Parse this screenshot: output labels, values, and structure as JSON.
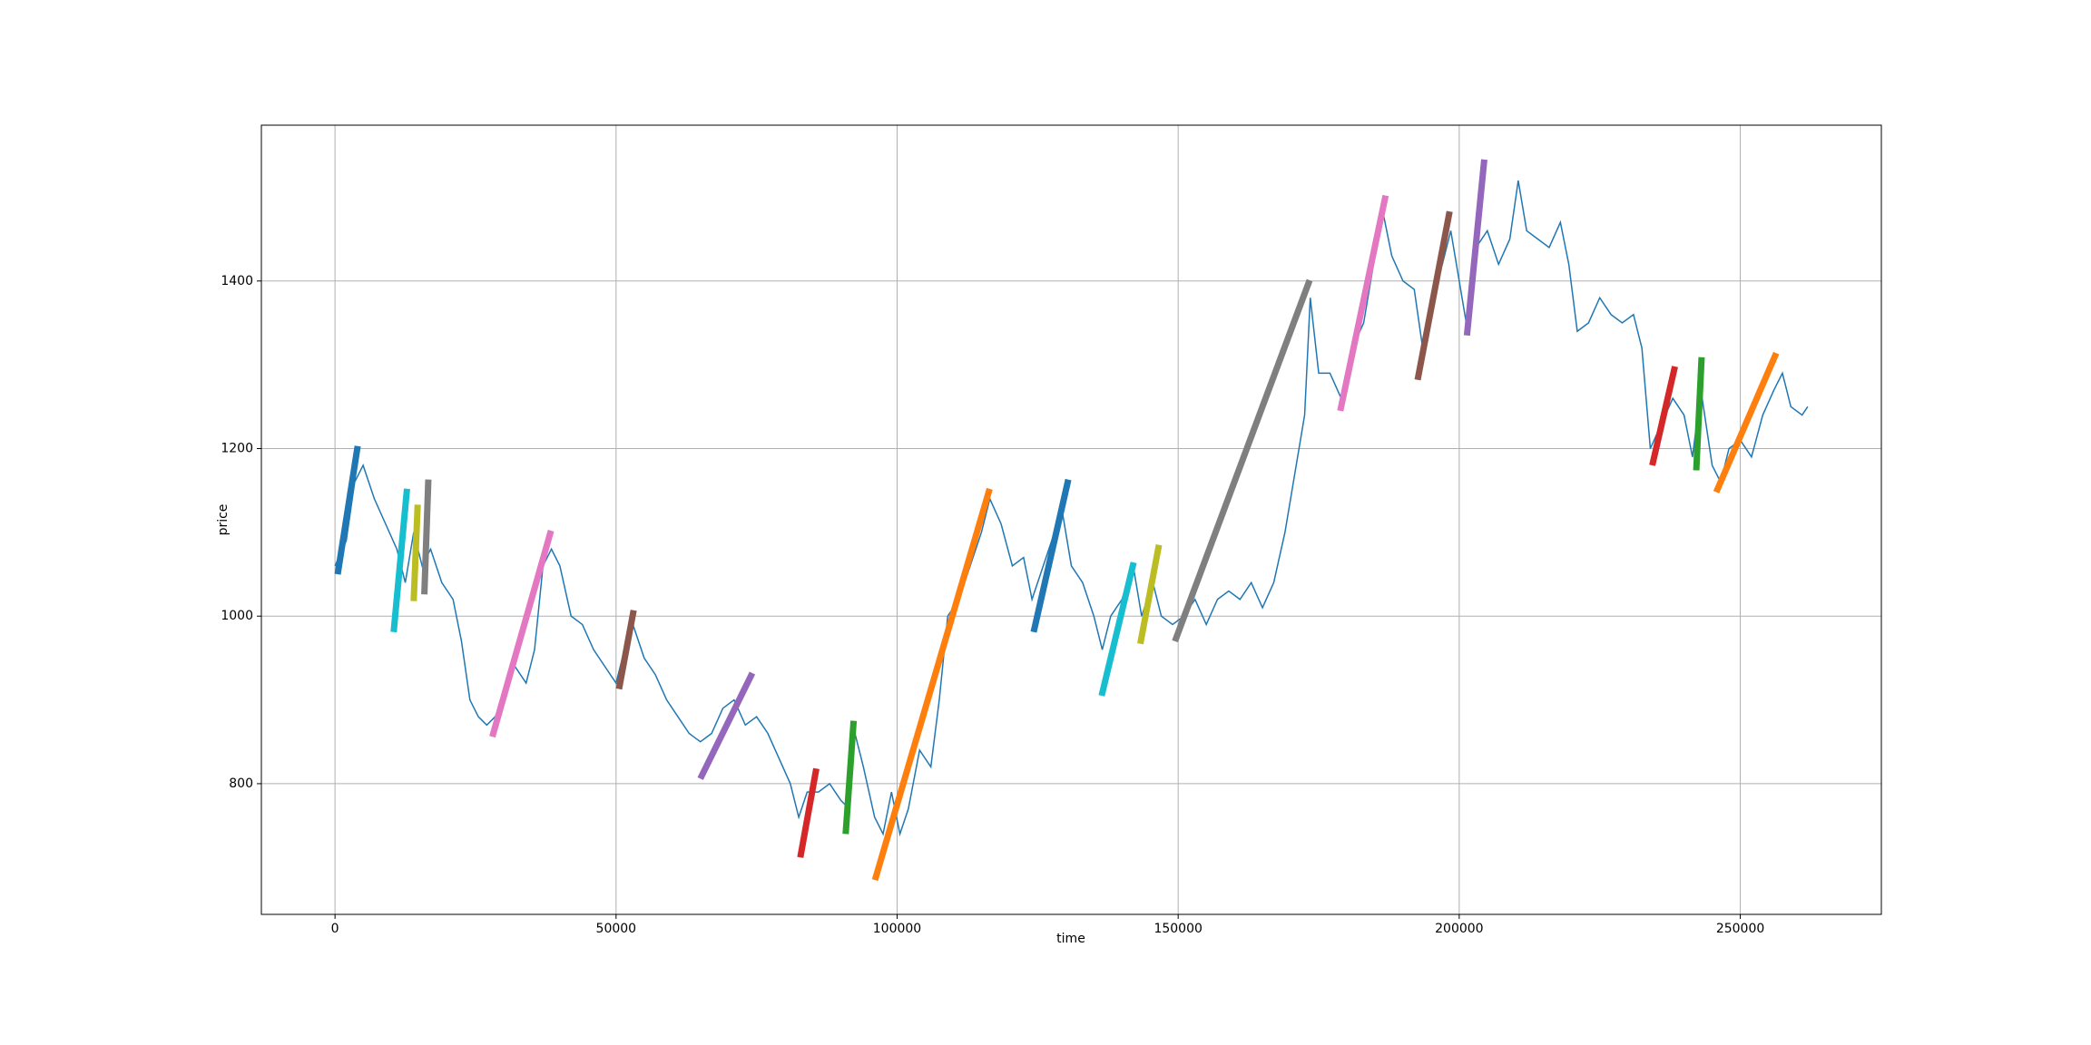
{
  "chart_data": {
    "type": "line",
    "xlabel": "time",
    "ylabel": "price",
    "x": [
      0,
      2000,
      3500,
      5000,
      7000,
      9000,
      11000,
      12500,
      14000,
      15500,
      17000,
      19000,
      21000,
      22500,
      24000,
      25500,
      27000,
      28500,
      30000,
      32000,
      34000,
      35500,
      37000,
      38500,
      40000,
      42000,
      44000,
      46000,
      48000,
      50000,
      51500,
      53000,
      55000,
      57000,
      59000,
      61000,
      63000,
      65000,
      67000,
      69000,
      71000,
      73000,
      75000,
      77000,
      79000,
      81000,
      82500,
      84000,
      86000,
      88000,
      90000,
      91500,
      92500,
      94000,
      96000,
      97500,
      99000,
      100500,
      102000,
      104000,
      106000,
      107500,
      109000,
      111000,
      113000,
      115000,
      116500,
      118500,
      120500,
      122500,
      124000,
      126000,
      128000,
      129500,
      131000,
      133000,
      135000,
      136500,
      138000,
      140000,
      142000,
      143500,
      145500,
      147000,
      149000,
      151000,
      153000,
      155000,
      157000,
      159000,
      161000,
      163000,
      165000,
      167000,
      169000,
      171000,
      172500,
      173500,
      175000,
      177000,
      179000,
      181000,
      183000,
      185000,
      186500,
      188000,
      190000,
      192000,
      193500,
      195000,
      197000,
      198500,
      200000,
      201500,
      203000,
      205000,
      207000,
      209000,
      210500,
      212000,
      214000,
      216000,
      218000,
      219500,
      221000,
      223000,
      225000,
      227000,
      229000,
      231000,
      232500,
      234000,
      236000,
      238000,
      240000,
      241500,
      243000,
      245000,
      246500,
      248000,
      250000,
      252000,
      254000,
      256000,
      257500,
      259000,
      261000,
      262000
    ],
    "series": [
      {
        "color": "#1f77b4",
        "values": [
          1060,
          1090,
          1160,
          1180,
          1140,
          1110,
          1080,
          1040,
          1100,
          1060,
          1080,
          1040,
          1020,
          970,
          900,
          880,
          870,
          880,
          900,
          940,
          920,
          960,
          1060,
          1080,
          1060,
          1000,
          990,
          960,
          940,
          920,
          960,
          990,
          950,
          930,
          900,
          880,
          860,
          850,
          860,
          890,
          900,
          870,
          880,
          860,
          830,
          800,
          760,
          790,
          790,
          800,
          780,
          770,
          860,
          820,
          760,
          740,
          790,
          740,
          770,
          840,
          820,
          900,
          1000,
          1020,
          1060,
          1100,
          1140,
          1110,
          1060,
          1070,
          1020,
          1060,
          1100,
          1120,
          1060,
          1040,
          1000,
          960,
          1000,
          1020,
          1060,
          1000,
          1040,
          1000,
          990,
          1000,
          1020,
          990,
          1020,
          1030,
          1020,
          1040,
          1010,
          1040,
          1100,
          1180,
          1240,
          1380,
          1290,
          1290,
          1260,
          1320,
          1350,
          1430,
          1480,
          1430,
          1400,
          1390,
          1320,
          1380,
          1420,
          1460,
          1400,
          1340,
          1440,
          1460,
          1420,
          1450,
          1520,
          1460,
          1450,
          1440,
          1470,
          1420,
          1340,
          1350,
          1380,
          1360,
          1350,
          1360,
          1320,
          1200,
          1230,
          1260,
          1240,
          1190,
          1270,
          1180,
          1160,
          1200,
          1210,
          1190,
          1240,
          1270,
          1290,
          1250,
          1240,
          1250
        ]
      }
    ],
    "segments": [
      {
        "color": "#1f77b4",
        "x": [
          474,
          4032
        ],
        "values": [
          1050,
          1203
        ]
      },
      {
        "color": "#17becf",
        "x": [
          10436,
          12808
        ],
        "values": [
          981,
          1152
        ]
      },
      {
        "color": "#bcbd22",
        "x": [
          13995,
          14706
        ],
        "values": [
          1018,
          1133
        ]
      },
      {
        "color": "#7f7f7f",
        "x": [
          15892,
          16603
        ],
        "values": [
          1026,
          1163
        ]
      },
      {
        "color": "#e377c2",
        "x": [
          27989,
          38425
        ],
        "values": [
          856,
          1102
        ]
      },
      {
        "color": "#8c564b",
        "x": [
          50521,
          53130
        ],
        "values": [
          913,
          1007
        ]
      },
      {
        "color": "#9467bd",
        "x": [
          64991,
          74241
        ],
        "values": [
          806,
          932
        ]
      },
      {
        "color": "#d62728",
        "x": [
          82780,
          85626
        ],
        "values": [
          712,
          818
        ]
      },
      {
        "color": "#2ca02c",
        "x": [
          90844,
          92267
        ],
        "values": [
          740,
          875
        ]
      },
      {
        "color": "#ff7f0e",
        "x": [
          96063,
          116461
        ],
        "values": [
          685,
          1152
        ]
      },
      {
        "color": "#1f77b4",
        "x": [
          124288,
          130455
        ],
        "values": [
          981,
          1163
        ]
      },
      {
        "color": "#17becf",
        "x": [
          136385,
          142078
        ],
        "values": [
          905,
          1064
        ]
      },
      {
        "color": "#bcbd22",
        "x": [
          143264,
          146584
        ],
        "values": [
          967,
          1085
        ]
      },
      {
        "color": "#7f7f7f",
        "x": [
          149431,
          173387
        ],
        "values": [
          970,
          1401
        ]
      },
      {
        "color": "#e377c2",
        "x": [
          178843,
          186907
        ],
        "values": [
          1245,
          1502
        ]
      },
      {
        "color": "#8c564b",
        "x": [
          192600,
          198292
        ],
        "values": [
          1282,
          1483
        ]
      },
      {
        "color": "#9467bd",
        "x": [
          201375,
          204459
        ],
        "values": [
          1335,
          1545
        ]
      },
      {
        "color": "#d62728",
        "x": [
          234345,
          238378
        ],
        "values": [
          1180,
          1298
        ]
      },
      {
        "color": "#2ca02c",
        "x": [
          242173,
          243122
        ],
        "values": [
          1174,
          1309
        ]
      },
      {
        "color": "#ff7f0e",
        "x": [
          245731,
          256404
        ],
        "values": [
          1148,
          1314
        ]
      }
    ],
    "xlim": [
      -13100,
      275100
    ],
    "ylim": [
      644,
      1586
    ],
    "xticks": [
      0,
      50000,
      100000,
      150000,
      200000,
      250000
    ],
    "yticks": [
      800,
      1000,
      1200,
      1400
    ],
    "grid": true
  }
}
